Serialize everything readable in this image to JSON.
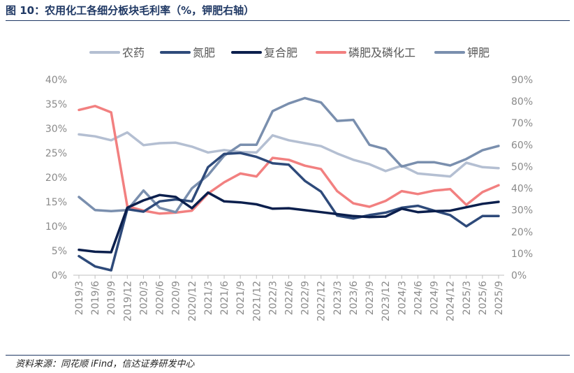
{
  "figure": {
    "title": "图 10：农用化工各细分板块毛利率（%，钾肥右轴）",
    "source": "资料来源：同花顺 iFind，信达证券研发中心"
  },
  "chart_data": {
    "type": "line",
    "x": [
      "2019/3",
      "2019/6",
      "2019/9",
      "2019/12",
      "2020/3",
      "2020/6",
      "2020/9",
      "2020/12",
      "2021/3",
      "2021/6",
      "2021/9",
      "2021/12",
      "2022/3",
      "2022/6",
      "2022/9",
      "2022/12",
      "2023/3",
      "2023/6",
      "2023/9",
      "2023/12",
      "2024/3",
      "2024/6",
      "2024/9",
      "2024/12",
      "2025/3",
      "2025/6",
      "2025/9"
    ],
    "y_left": {
      "ticks": [
        "0%",
        "5%",
        "10%",
        "15%",
        "20%",
        "25%",
        "30%",
        "35%",
        "40%"
      ],
      "range": [
        0,
        40
      ]
    },
    "y_right": {
      "ticks": [
        "0%",
        "10%",
        "20%",
        "30%",
        "40%",
        "50%",
        "60%",
        "70%",
        "80%",
        "90%"
      ],
      "range": [
        0,
        90
      ]
    },
    "legend_position": "top",
    "series": [
      {
        "name": "农药",
        "axis": "left",
        "color": "#b4bfd2",
        "values": [
          28.8,
          28.4,
          27.6,
          29.2,
          26.6,
          27.0,
          27.1,
          26.3,
          25.1,
          25.6,
          25.2,
          25.1,
          28.6,
          27.6,
          27.0,
          26.4,
          24.9,
          23.6,
          22.7,
          21.3,
          22.4,
          20.8,
          20.5,
          20.2,
          23.0,
          22.1,
          21.9
        ]
      },
      {
        "name": "氮肥",
        "axis": "left",
        "color": "#2e4a7a",
        "values": [
          3.9,
          1.8,
          1.0,
          13.5,
          13.0,
          15.1,
          15.5,
          15.1,
          22.1,
          24.8,
          25.0,
          24.2,
          22.9,
          22.6,
          19.3,
          17.1,
          12.2,
          11.6,
          12.3,
          12.8,
          13.8,
          14.2,
          13.2,
          12.3,
          10.0,
          12.1,
          12.1
        ]
      },
      {
        "name": "复合肥",
        "axis": "left",
        "color": "#0b1f4d",
        "values": [
          5.2,
          4.8,
          4.7,
          13.8,
          15.3,
          16.4,
          16.0,
          13.7,
          16.9,
          15.1,
          14.9,
          14.5,
          13.6,
          13.7,
          13.3,
          12.9,
          12.5,
          12.1,
          11.9,
          12.0,
          13.6,
          12.9,
          13.1,
          13.2,
          13.9,
          14.6,
          15.0
        ]
      },
      {
        "name": "磷肥及磷化工",
        "axis": "left",
        "color": "#f28080",
        "values": [
          33.8,
          34.6,
          33.3,
          14.1,
          13.2,
          12.6,
          12.8,
          13.2,
          16.7,
          19.0,
          20.8,
          20.2,
          24.0,
          23.6,
          22.4,
          21.7,
          17.2,
          14.7,
          14.0,
          15.2,
          17.2,
          16.6,
          17.3,
          17.6,
          14.4,
          17.0,
          18.4
        ]
      },
      {
        "name": "钾肥",
        "axis": "right",
        "color": "#7a8fae",
        "values": [
          36.0,
          30.0,
          29.5,
          30.0,
          39.0,
          31.0,
          29.0,
          40.0,
          46.0,
          55.0,
          60.0,
          60.0,
          75.5,
          79.0,
          81.5,
          79.5,
          71.0,
          71.5,
          60.0,
          58.0,
          50.0,
          52.0,
          52.0,
          50.5,
          53.5,
          57.5,
          59.5
        ]
      }
    ]
  }
}
